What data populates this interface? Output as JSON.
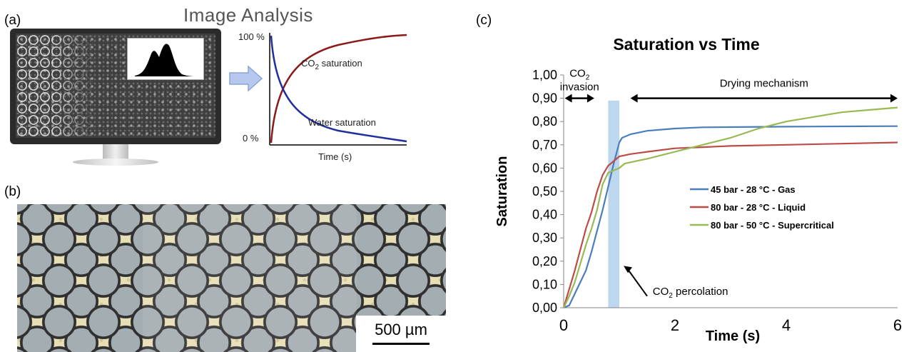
{
  "panel_labels": {
    "a": "(a)",
    "b": "(b)",
    "c": "(c)"
  },
  "panel_a": {
    "title": "Image Analysis",
    "y_top": "100 %",
    "y_bottom": "0 %",
    "x_label": "Time (s)",
    "co2_curve": {
      "label": "CO",
      "sub": "2",
      "suffix": " saturation",
      "color": "#8b1a1a"
    },
    "water_curve": {
      "label": "Water saturation",
      "color": "#1f2f9c"
    },
    "arrow_color": "#b7c8ee"
  },
  "panel_b": {
    "scale_label": "500 µm"
  },
  "chart_data": {
    "type": "line",
    "title": "Saturation vs Time",
    "xlabel": "Time (s)",
    "ylabel": "Saturation",
    "xlim": [
      0,
      6
    ],
    "ylim": [
      0,
      1
    ],
    "x_ticks": [
      "0",
      "2",
      "4",
      "6"
    ],
    "y_ticks": [
      "0,00",
      "0,10",
      "0,20",
      "0,30",
      "0,40",
      "0,50",
      "0,60",
      "0,70",
      "0,80",
      "0,90",
      "1,00"
    ],
    "grid": false,
    "legend_position": "center-right",
    "series": [
      {
        "name": "45 bar - 28 °C - Gas",
        "color": "#4a7ebb",
        "x": [
          0,
          0.1,
          0.2,
          0.3,
          0.4,
          0.5,
          0.6,
          0.7,
          0.8,
          0.9,
          1.0,
          1.05,
          1.2,
          1.5,
          2.0,
          2.5,
          3.0,
          4.0,
          5.0,
          6.0
        ],
        "y": [
          0,
          0.01,
          0.06,
          0.11,
          0.16,
          0.24,
          0.33,
          0.42,
          0.52,
          0.62,
          0.71,
          0.73,
          0.745,
          0.76,
          0.77,
          0.775,
          0.776,
          0.778,
          0.779,
          0.78
        ]
      },
      {
        "name": "80 bar - 28 °C - Liquid",
        "color": "#be4b48",
        "x": [
          0,
          0.1,
          0.2,
          0.3,
          0.4,
          0.5,
          0.6,
          0.7,
          0.8,
          0.9,
          1.0,
          1.2,
          1.5,
          2.0,
          2.5,
          3.0,
          4.0,
          5.0,
          6.0
        ],
        "y": [
          0,
          0.08,
          0.16,
          0.25,
          0.34,
          0.41,
          0.5,
          0.57,
          0.61,
          0.63,
          0.65,
          0.66,
          0.67,
          0.685,
          0.69,
          0.695,
          0.7,
          0.705,
          0.71
        ]
      },
      {
        "name": "80 bar - 50 °C - Supercritical",
        "color": "#98b954",
        "x": [
          0,
          0.1,
          0.2,
          0.3,
          0.4,
          0.5,
          0.6,
          0.7,
          0.8,
          0.9,
          1.0,
          1.1,
          1.5,
          2.0,
          2.5,
          3.0,
          3.5,
          4.0,
          4.5,
          5.0,
          5.5,
          6.0
        ],
        "y": [
          0,
          0.05,
          0.11,
          0.19,
          0.27,
          0.34,
          0.42,
          0.53,
          0.58,
          0.59,
          0.6,
          0.62,
          0.64,
          0.67,
          0.7,
          0.73,
          0.77,
          0.8,
          0.82,
          0.84,
          0.85,
          0.86
        ]
      }
    ],
    "annotations": {
      "co2_invasion": {
        "line1_main": "CO",
        "line1_sub": "2",
        "line2": "invasion",
        "x_start": 0.02,
        "x_end": 0.55,
        "y": 0.9
      },
      "drying": {
        "text": "Drying mechanism",
        "x_start": 1.2,
        "x_end": 6.0,
        "y": 0.9
      },
      "percolation_band": {
        "x_start": 0.8,
        "x_end": 1.0,
        "y_top": 0.89,
        "color": "#bdd7ee"
      },
      "percolation": {
        "main": "CO",
        "sub": "2",
        "suffix": " percolation"
      }
    }
  }
}
